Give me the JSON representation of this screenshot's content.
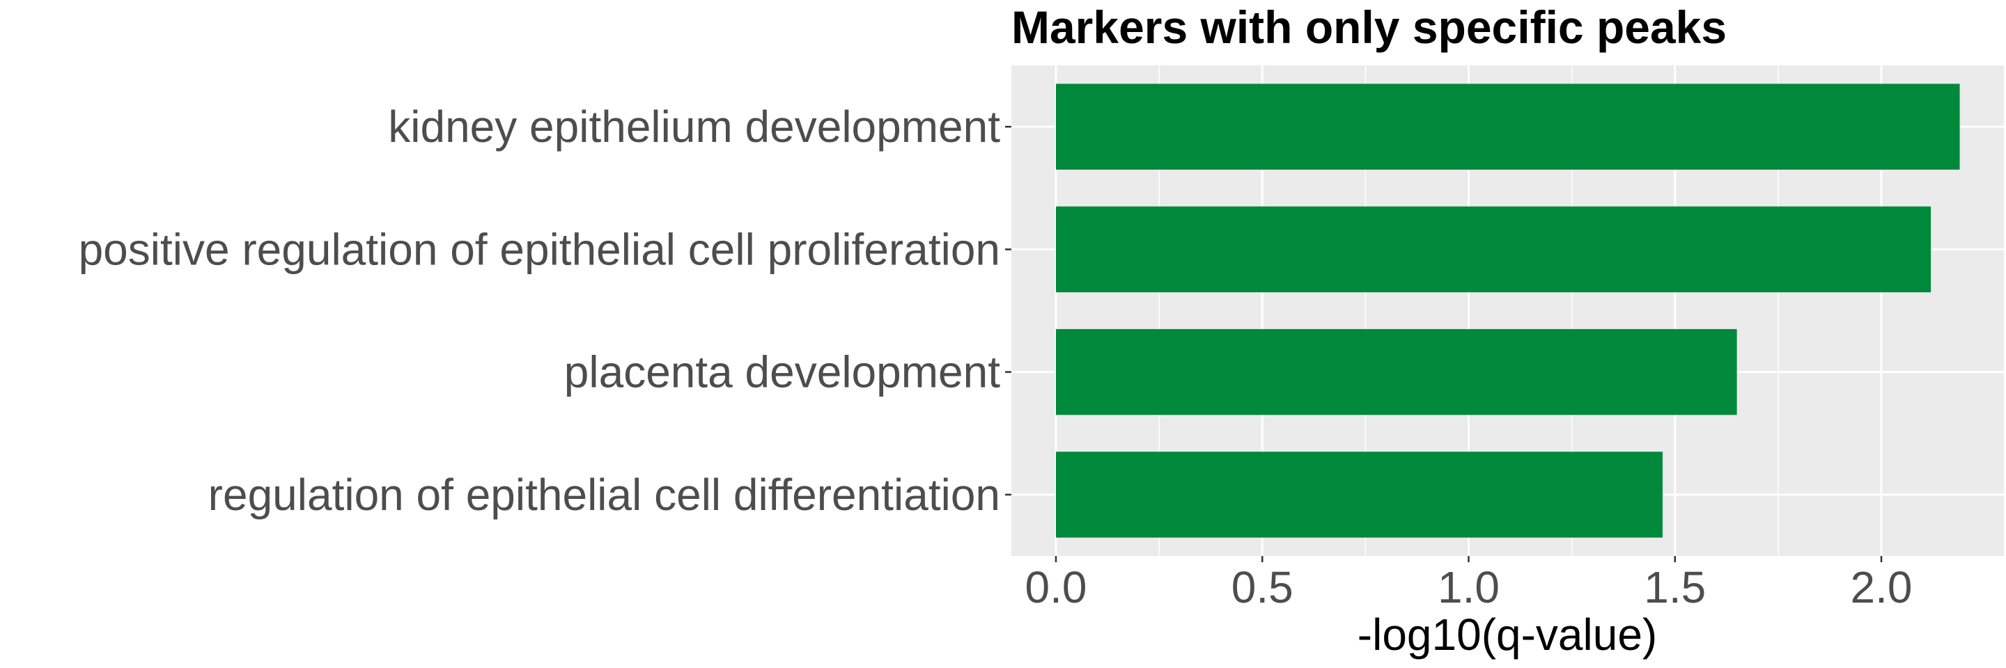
{
  "chart_data": {
    "type": "bar",
    "orientation": "horizontal",
    "title": "Markers with only specific peaks",
    "xlabel": "-log10(q-value)",
    "ylabel": "",
    "categories": [
      "kidney epithelium development",
      "positive regulation of epithelial cell proliferation",
      "placenta development",
      "regulation of epithelial cell differentiation"
    ],
    "values": [
      2.19,
      2.12,
      1.65,
      1.47
    ],
    "xlim": [
      -0.1,
      2.3
    ],
    "xticks": [
      0.0,
      0.5,
      1.0,
      1.5,
      2.0
    ],
    "xtick_labels": [
      "0.0",
      "0.5",
      "1.0",
      "1.5",
      "2.0"
    ],
    "bar_color": "#00893a",
    "panel_background": "#ebebeb",
    "grid_color": "#ffffff",
    "grid": true,
    "legend": "none"
  }
}
